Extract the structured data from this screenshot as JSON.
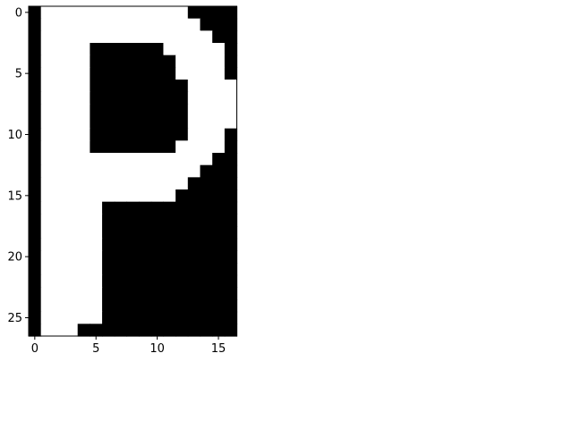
{
  "chart_data": {
    "type": "heatmap",
    "colormap": "gray",
    "colors": {
      "on": "#ffffff",
      "off": "#000000",
      "axis": "#000000"
    },
    "xlim": [
      -0.5,
      16.5
    ],
    "ylim": [
      26.5,
      -0.5
    ],
    "grid": false,
    "x_ticks": [
      0,
      5,
      10,
      15
    ],
    "y_ticks": [
      0,
      5,
      10,
      15,
      20,
      25
    ],
    "x_tick_labels": [
      "0",
      "5",
      "10",
      "15"
    ],
    "y_tick_labels": [
      "0",
      "5",
      "10",
      "15",
      "20",
      "25"
    ],
    "rows": [
      "01111111111110000",
      "01111111111111000",
      "01111111111111100",
      "01111000000111110",
      "01111000000011110",
      "01111000000011110",
      "01111000000001111",
      "01111000000001111",
      "01111000000001111",
      "01111000000001111",
      "01111000000001110",
      "01111000000011110",
      "01111111111111100",
      "01111111111111000",
      "01111111111110000",
      "01111111111100000",
      "01111100000000000",
      "01111100000000000",
      "01111100000000000",
      "01111100000000000",
      "01111100000000000",
      "01111100000000000",
      "01111100000000000",
      "01111100000000000",
      "01111100000000000",
      "01111100000000000",
      "01110000000000000"
    ]
  }
}
